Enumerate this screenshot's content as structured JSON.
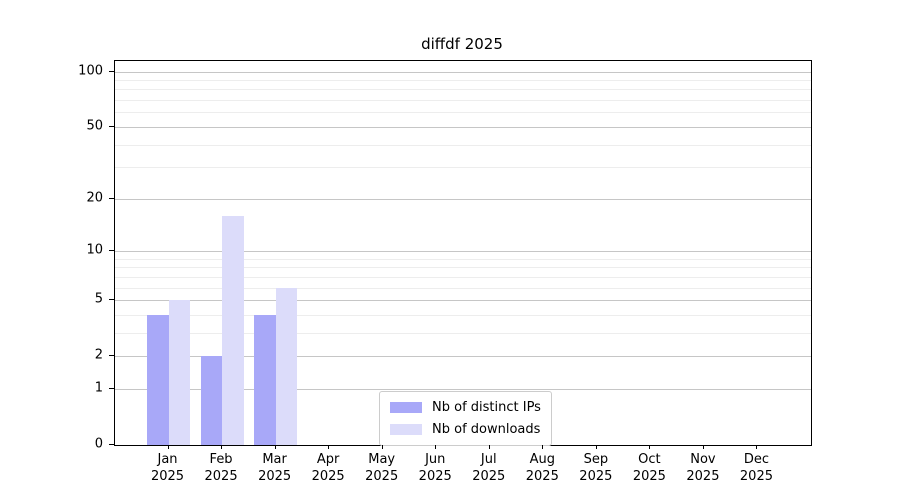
{
  "chart_data": {
    "type": "bar",
    "title": "diffdf 2025",
    "categories": [
      "Jan",
      "Feb",
      "Mar",
      "Apr",
      "May",
      "Jun",
      "Jul",
      "Aug",
      "Sep",
      "Oct",
      "Nov",
      "Dec"
    ],
    "category_year": "2025",
    "series": [
      {
        "name": "Nb of distinct IPs",
        "color": "#a8a8f8",
        "values": [
          4,
          2,
          4,
          0,
          0,
          0,
          0,
          0,
          0,
          0,
          0,
          0
        ]
      },
      {
        "name": "Nb of downloads",
        "color": "#dcdcfa",
        "values": [
          5,
          16,
          6,
          0,
          0,
          0,
          0,
          0,
          0,
          0,
          0,
          0
        ]
      }
    ],
    "xlabel": "",
    "ylabel": "",
    "yscale": "log10(1+y)",
    "ylim": [
      0,
      115
    ],
    "yticks": [
      0,
      1,
      2,
      5,
      10,
      20,
      50,
      100
    ],
    "minor_gridlines": [
      3,
      4,
      6,
      7,
      8,
      9,
      30,
      40,
      60,
      70,
      80,
      90
    ],
    "grid": "on",
    "legend_position": "lower center"
  }
}
